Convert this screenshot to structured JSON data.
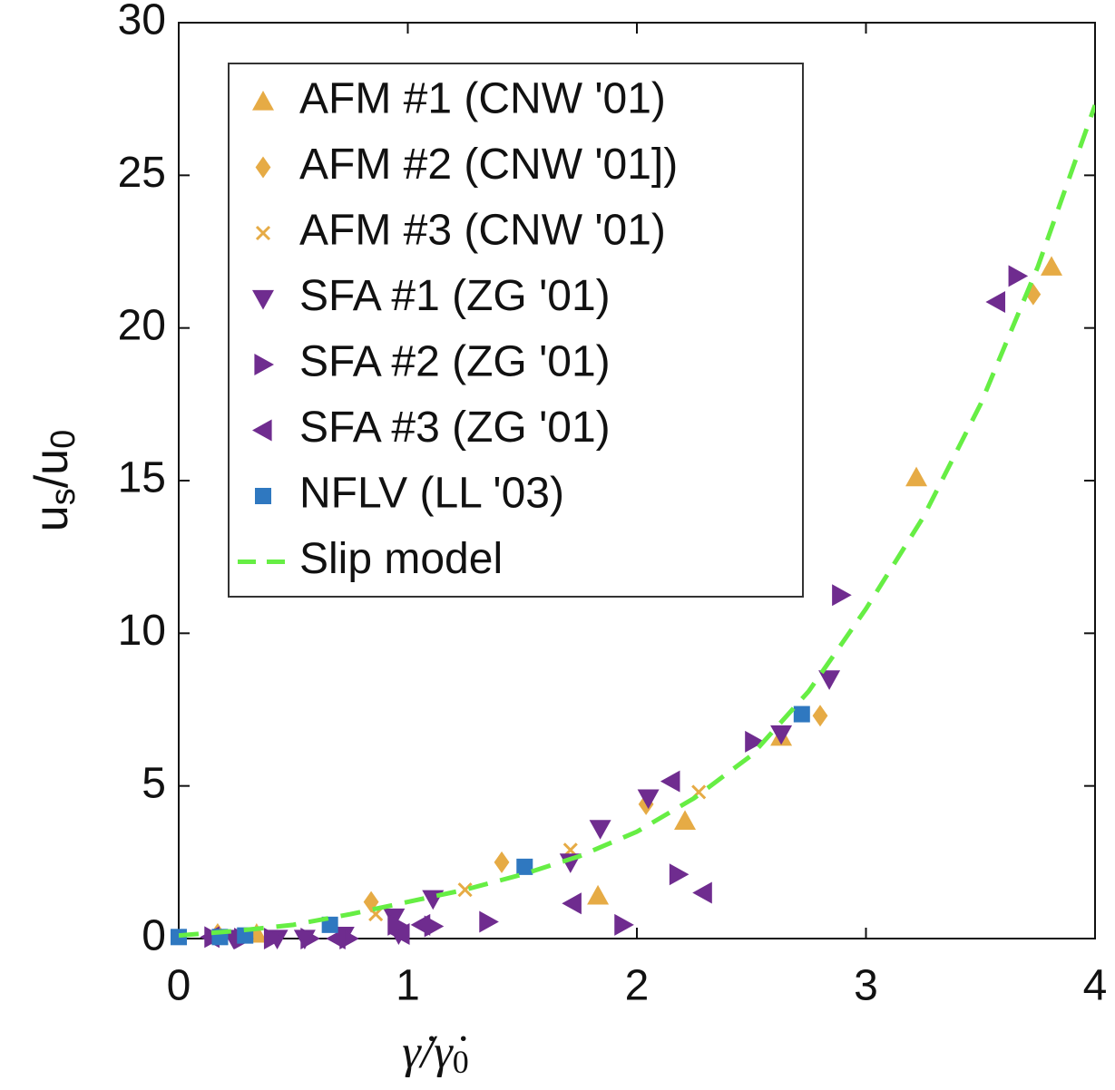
{
  "chart_data": {
    "type": "scatter",
    "xlabel": [
      "γ̇",
      "/",
      "γ̇",
      "0"
    ],
    "ylabel": [
      "u",
      "s",
      "/u",
      "0"
    ],
    "xlim": [
      0,
      4
    ],
    "xticks": [
      0,
      1,
      2,
      3,
      4
    ],
    "ylim": [
      0,
      30
    ],
    "yticks": [
      0,
      5,
      10,
      15,
      20,
      25,
      30
    ],
    "legend": "upper left",
    "series": [
      {
        "name": "AFM #1 (CNW '01)",
        "color": "#e6ab45",
        "marker": "triangle-up",
        "x": [
          0.17,
          0.34,
          1.83,
          2.21,
          2.63,
          3.22,
          3.81
        ],
        "values": [
          0.1,
          0.15,
          1.4,
          3.85,
          6.6,
          15.1,
          22.0
        ]
      },
      {
        "name": "AFM #2 (CNW '01])",
        "color": "#e6ab45",
        "marker": "diamond",
        "x": [
          0.17,
          0.84,
          1.41,
          2.04,
          2.8,
          3.73
        ],
        "values": [
          0.15,
          1.2,
          2.5,
          4.4,
          7.3,
          21.1
        ]
      },
      {
        "name": "AFM #3 (CNW '01)",
        "color": "#e6ab45",
        "marker": "x",
        "x": [
          0.86,
          1.25,
          1.71,
          2.27
        ],
        "values": [
          0.8,
          1.6,
          2.9,
          4.8
        ]
      },
      {
        "name": "SFA #1 (ZG '01)",
        "color": "#6f2c8f",
        "marker": "triangle-down",
        "x": [
          0.24,
          0.43,
          0.55,
          0.72,
          0.94,
          0.96,
          1.11,
          1.71,
          1.84,
          2.05,
          2.63,
          2.84
        ],
        "values": [
          0.0,
          0.0,
          0.0,
          0.1,
          0.7,
          0.15,
          1.3,
          2.5,
          3.6,
          4.6,
          6.7,
          8.5
        ]
      },
      {
        "name": "SFA #2 (ZG '01)",
        "color": "#6f2c8f",
        "marker": "triangle-right",
        "x": [
          0.15,
          0.28,
          0.41,
          0.57,
          0.74,
          0.95,
          1.11,
          1.35,
          1.94,
          2.18,
          2.51,
          2.89,
          3.66
        ],
        "values": [
          0.05,
          0.0,
          0.0,
          0.0,
          0.0,
          0.45,
          0.4,
          0.55,
          0.45,
          2.1,
          6.45,
          11.25,
          21.7
        ]
      },
      {
        "name": "SFA #3 (ZG '01)",
        "color": "#6f2c8f",
        "marker": "triangle-left",
        "x": [
          0.14,
          0.69,
          0.97,
          1.06,
          1.72,
          2.15,
          2.29,
          3.57
        ],
        "values": [
          0.05,
          0.0,
          0.15,
          0.45,
          1.15,
          5.15,
          1.5,
          20.85
        ]
      },
      {
        "name": "NFLV (LL '03)",
        "color": "#2f78c0",
        "marker": "square",
        "x": [
          0.0,
          0.18,
          0.29,
          0.66,
          1.51,
          2.72
        ],
        "values": [
          0.05,
          0.05,
          0.1,
          0.45,
          2.35,
          7.35
        ]
      },
      {
        "name": "Slip model",
        "color": "#66ee44",
        "marker": "none",
        "linestyle": "dashed",
        "x": [
          0,
          0.25,
          0.5,
          0.75,
          1,
          1.25,
          1.5,
          1.75,
          2,
          2.25,
          2.5,
          2.75,
          3,
          3.25,
          3.5,
          3.75,
          4
        ],
        "values": [
          0.1,
          0.25,
          0.45,
          0.8,
          1.2,
          1.6,
          2.1,
          2.7,
          3.5,
          4.6,
          6.0,
          8.1,
          10.8,
          13.8,
          17.5,
          22.0,
          27.3
        ]
      }
    ]
  }
}
